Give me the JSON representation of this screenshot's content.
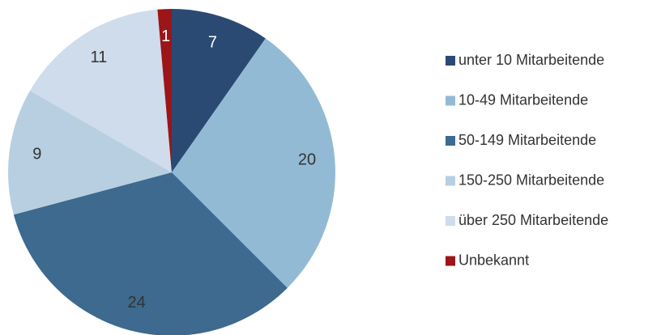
{
  "chart_data": {
    "type": "pie",
    "categories": [
      "unter 10 Mitarbeitende",
      "10-49 Mitarbeitende",
      "50-149 Mitarbeitende",
      "150-250 Mitarbeitende",
      "über 250 Mitarbeitende",
      "Unbekannt"
    ],
    "values": [
      7,
      20,
      24,
      9,
      11,
      1
    ],
    "colors": [
      "#2a4a73",
      "#93bad4",
      "#3d6a8e",
      "#b7cfe1",
      "#cfdcec",
      "#9b1519"
    ],
    "legend": "right"
  }
}
